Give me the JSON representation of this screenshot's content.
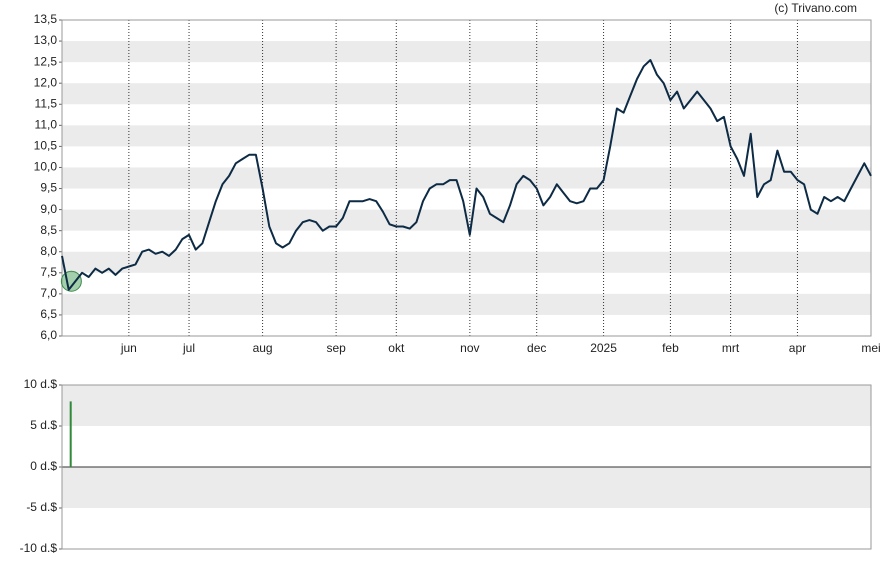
{
  "source": "(c) Trivano.com",
  "chart_data": [
    {
      "type": "line",
      "categories": [
        null,
        null,
        null,
        null,
        null,
        null,
        null,
        null,
        null,
        null,
        "jun",
        null,
        null,
        null,
        null,
        null,
        null,
        null,
        null,
        "jul",
        null,
        null,
        null,
        null,
        null,
        null,
        null,
        null,
        null,
        null,
        "aug",
        null,
        null,
        null,
        null,
        null,
        null,
        null,
        null,
        null,
        null,
        "sep",
        null,
        null,
        null,
        null,
        null,
        null,
        null,
        null,
        "okt",
        null,
        null,
        null,
        null,
        null,
        null,
        null,
        null,
        null,
        null,
        "nov",
        null,
        null,
        null,
        null,
        null,
        null,
        null,
        null,
        null,
        "dec",
        null,
        null,
        null,
        null,
        null,
        null,
        null,
        null,
        null,
        "2025",
        null,
        null,
        null,
        null,
        null,
        null,
        null,
        null,
        null,
        "feb",
        null,
        null,
        null,
        null,
        null,
        null,
        null,
        null,
        "mrt",
        null,
        null,
        null,
        null,
        null,
        null,
        null,
        null,
        null,
        "apr",
        null,
        null,
        null,
        null,
        null,
        null,
        null,
        null,
        null,
        null,
        "mei"
      ],
      "values": [
        7.9,
        7.1,
        7.3,
        7.5,
        7.4,
        7.6,
        7.5,
        7.6,
        7.45,
        7.6,
        7.65,
        7.7,
        8.0,
        8.05,
        7.95,
        8.0,
        7.9,
        8.05,
        8.3,
        8.4,
        8.05,
        8.2,
        8.7,
        9.2,
        9.6,
        9.8,
        10.1,
        10.2,
        10.3,
        10.3,
        9.5,
        8.6,
        8.2,
        8.1,
        8.2,
        8.5,
        8.7,
        8.75,
        8.7,
        8.5,
        8.6,
        8.6,
        8.8,
        9.2,
        9.2,
        9.2,
        9.25,
        9.2,
        8.95,
        8.65,
        8.6,
        8.6,
        8.55,
        8.7,
        9.2,
        9.5,
        9.6,
        9.6,
        9.7,
        9.7,
        9.2,
        8.4,
        9.5,
        9.3,
        8.9,
        8.8,
        8.7,
        9.1,
        9.6,
        9.8,
        9.7,
        9.5,
        9.1,
        9.3,
        9.6,
        9.4,
        9.2,
        9.15,
        9.2,
        9.5,
        9.5,
        9.7,
        10.5,
        11.4,
        11.3,
        11.7,
        12.1,
        12.4,
        12.55,
        12.2,
        12.0,
        11.6,
        11.8,
        11.4,
        11.6,
        11.8,
        11.6,
        11.4,
        11.1,
        11.2,
        10.5,
        10.2,
        9.8,
        10.8,
        9.3,
        9.6,
        9.7,
        10.4,
        9.9,
        9.9,
        9.7,
        9.6,
        9.0,
        8.9,
        9.3,
        9.2,
        9.3,
        9.2,
        9.5,
        9.8,
        10.1,
        9.8
      ],
      "color": "#0d2b45",
      "ylim": [
        6,
        13.5
      ],
      "yticks": [
        {
          "value": 6,
          "label": "6,0"
        },
        {
          "value": 6.5,
          "label": "6,5"
        },
        {
          "value": 7,
          "label": "7,0"
        },
        {
          "value": 7.5,
          "label": "7,5"
        },
        {
          "value": 8,
          "label": "8,0"
        },
        {
          "value": 8.5,
          "label": "8,5"
        },
        {
          "value": 9,
          "label": "9,0"
        },
        {
          "value": 9.5,
          "label": "9,5"
        },
        {
          "value": 10,
          "label": "10,0"
        },
        {
          "value": 10.5,
          "label": "10,5"
        },
        {
          "value": 11,
          "label": "11,0"
        },
        {
          "value": 11.5,
          "label": "11,5"
        },
        {
          "value": 12,
          "label": "12,0"
        },
        {
          "value": 12.5,
          "label": "12,5"
        },
        {
          "value": 13,
          "label": "13,0"
        },
        {
          "value": 13.5,
          "label": "13,5"
        }
      ],
      "grid": true
    },
    {
      "type": "bar",
      "values": [
        null,
        8
      ],
      "color": "#2e8b3a",
      "ylim": [
        -10,
        10
      ],
      "yticks": [
        {
          "value": 10,
          "label": "10 d.$"
        },
        {
          "value": 5,
          "label": "5 d.$"
        },
        {
          "value": 0,
          "label": "0 d.$"
        },
        {
          "value": -5,
          "label": "-5 d.$"
        },
        {
          "value": -10,
          "label": "-10 d.$"
        }
      ],
      "grid": true
    }
  ]
}
